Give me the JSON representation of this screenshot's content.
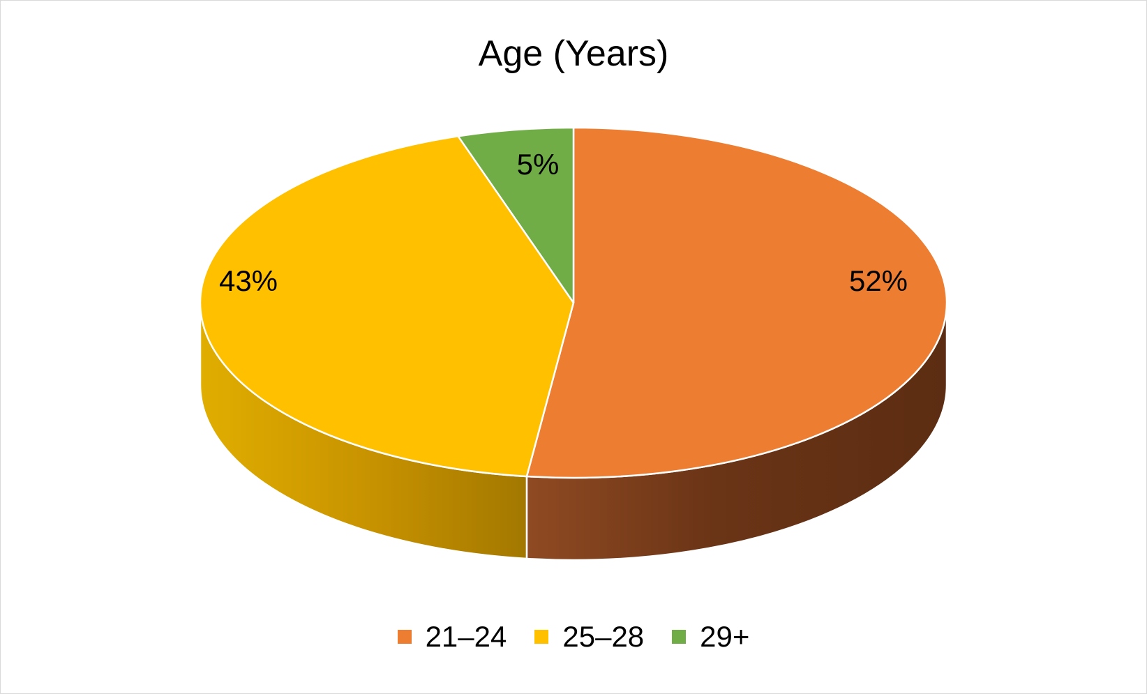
{
  "chart_data": {
    "type": "pie",
    "title": "Age (Years)",
    "slices": [
      {
        "label": "21–24",
        "value": 52,
        "display": "52%",
        "color": "#ED7D31",
        "side_color": "#8B4513"
      },
      {
        "label": "25–28",
        "value": 43,
        "display": "43%",
        "color": "#FFC000",
        "side_color": "#C9A000"
      },
      {
        "label": "29+",
        "value": 5,
        "display": "5%",
        "color": "#70AD47",
        "side_color": "#4E7A32"
      }
    ],
    "legend_position": "bottom",
    "style": "3d"
  }
}
